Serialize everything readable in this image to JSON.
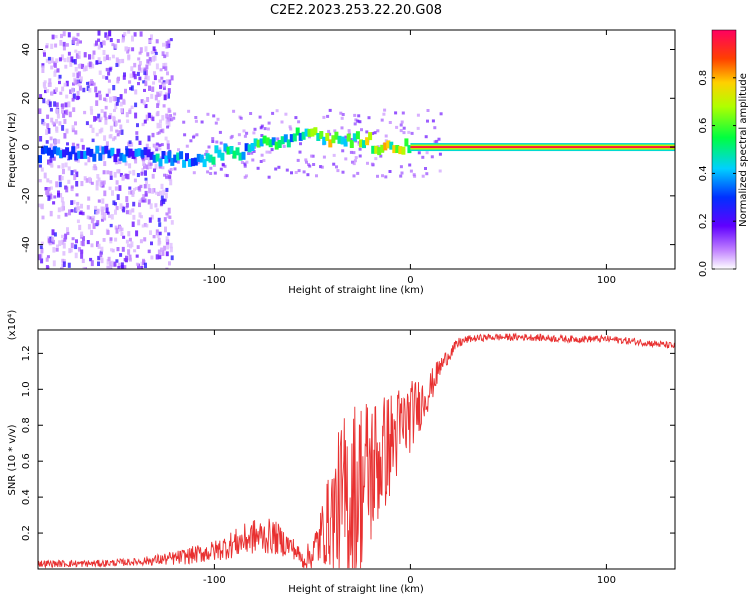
{
  "title": "C2E2.2023.253.22.20.G08",
  "colorbar": {
    "label": "Normalized spectral amplitude",
    "ticks": [
      "0.0",
      "0.2",
      "0.4",
      "0.6",
      "0.8"
    ],
    "range": [
      0,
      1
    ]
  },
  "chart_data": [
    {
      "type": "heatmap",
      "xlabel": "Height of straight line (km)",
      "ylabel": "Frequency (Hz)",
      "xlim": [
        -190,
        135
      ],
      "ylim": [
        -50,
        48
      ],
      "x_ticks": [
        "-100",
        "0",
        "100"
      ],
      "y_ticks": [
        "40",
        "20",
        "0",
        "-20",
        "-40"
      ],
      "noise_region_x": [
        -190,
        -130
      ],
      "center_line_segments": [
        {
          "x": [
            -190,
            -130
          ],
          "freq": -3,
          "amplitude": 0.35
        },
        {
          "x": [
            -130,
            -100
          ],
          "freq": -5,
          "amplitude": 0.45
        },
        {
          "x": [
            -100,
            -80
          ],
          "freq": -2,
          "amplitude": 0.5
        },
        {
          "x": [
            -80,
            -60
          ],
          "freq": 2,
          "amplitude": 0.55
        },
        {
          "x": [
            -60,
            -45
          ],
          "freq": 6,
          "amplitude": 0.6
        },
        {
          "x": [
            -45,
            -20
          ],
          "freq": 3,
          "amplitude": 0.7
        },
        {
          "x": [
            -20,
            0
          ],
          "freq": 0,
          "amplitude": 0.8
        },
        {
          "x": [
            0,
            135
          ],
          "freq": 0,
          "amplitude": 1.0
        }
      ]
    },
    {
      "type": "line",
      "xlabel": "Height of straight line (km)",
      "ylabel": "SNR (10 * v/v)",
      "y_multiplier": "(x10⁴)",
      "xlim": [
        -190,
        135
      ],
      "ylim": [
        0,
        1.33
      ],
      "x_ticks": [
        "-100",
        "0",
        "100"
      ],
      "y_ticks": [
        "0.2",
        "0.4",
        "0.6",
        "0.8",
        "1.0",
        "1.2"
      ],
      "color": "#e83030",
      "series": [
        {
          "x": [
            -190,
            -160,
            -140,
            -120,
            -100,
            -90,
            -80,
            -70,
            -60,
            -55,
            -50,
            -45,
            -40,
            -35,
            -30,
            -25,
            -20,
            -15,
            -10,
            -5,
            0,
            5,
            10,
            15,
            20,
            25,
            30,
            40,
            60,
            80,
            100,
            120,
            135
          ],
          "values": [
            0.03,
            0.03,
            0.04,
            0.06,
            0.1,
            0.14,
            0.18,
            0.18,
            0.12,
            0.05,
            0.08,
            0.2,
            0.3,
            0.35,
            0.4,
            0.48,
            0.55,
            0.62,
            0.7,
            0.78,
            0.85,
            0.92,
            1.0,
            1.12,
            1.2,
            1.26,
            1.28,
            1.29,
            1.29,
            1.28,
            1.28,
            1.26,
            1.24
          ],
          "noise_band": [
            0.02,
            0.02,
            0.02,
            0.04,
            0.06,
            0.08,
            0.1,
            0.1,
            0.06,
            0.05,
            0.1,
            0.18,
            0.3,
            0.5,
            0.55,
            0.5,
            0.45,
            0.35,
            0.3,
            0.25,
            0.2,
            0.15,
            0.1,
            0.06,
            0.04,
            0.03,
            0.02,
            0.02,
            0.02,
            0.02,
            0.02,
            0.02,
            0.02
          ]
        }
      ]
    }
  ]
}
